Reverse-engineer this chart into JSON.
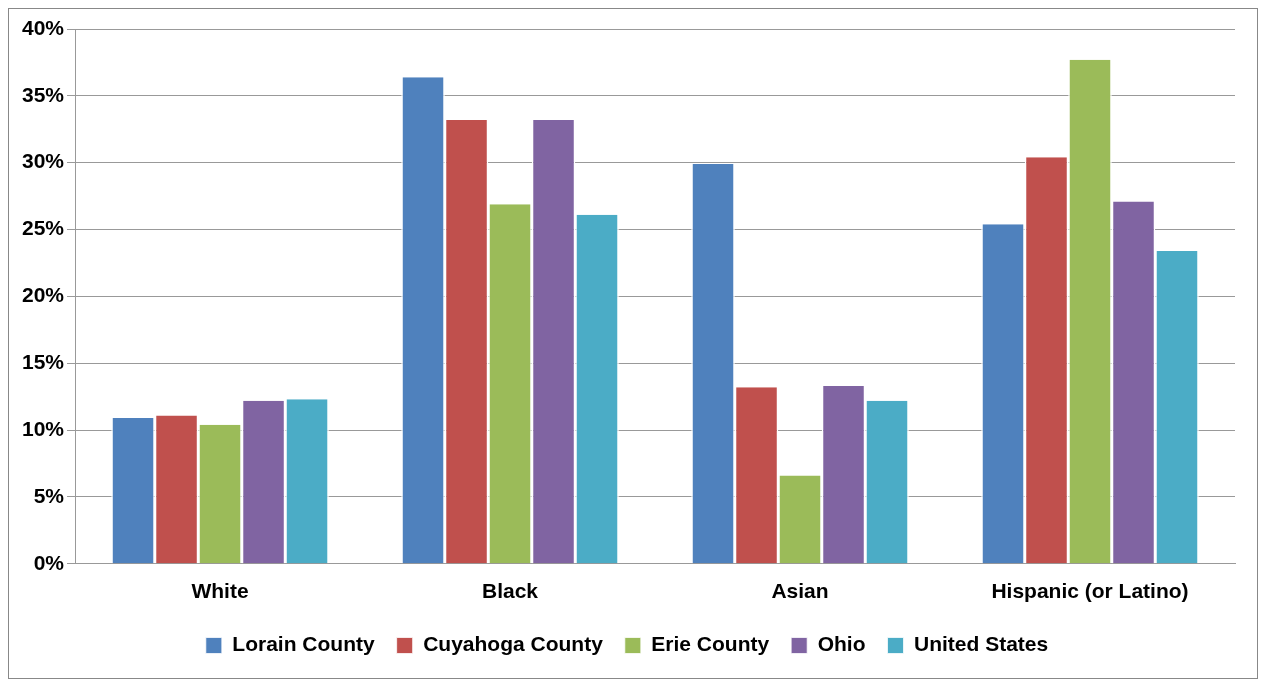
{
  "chart_data": {
    "type": "bar",
    "categories": [
      "White",
      "Black",
      "Asian",
      "Hispanic (or Latino)"
    ],
    "series": [
      {
        "name": "Lorain County",
        "color": "#4f81bd",
        "values": [
          10.9,
          36.4,
          29.9,
          25.4
        ]
      },
      {
        "name": "Cuyahoga County",
        "color": "#c0504d",
        "values": [
          11.1,
          33.2,
          13.2,
          30.4
        ]
      },
      {
        "name": "Erie County",
        "color": "#9bbb59",
        "values": [
          10.4,
          26.9,
          6.6,
          37.7
        ]
      },
      {
        "name": "Ohio",
        "color": "#8064a2",
        "values": [
          12.2,
          33.2,
          13.3,
          27.1
        ]
      },
      {
        "name": "United States",
        "color": "#4bacc6",
        "values": [
          12.3,
          26.1,
          12.2,
          23.4
        ]
      }
    ],
    "ylim": [
      0,
      40
    ],
    "yticks": [
      {
        "value": 0,
        "label": "0%"
      },
      {
        "value": 5,
        "label": "5%"
      },
      {
        "value": 10,
        "label": "10%"
      },
      {
        "value": 15,
        "label": "15%"
      },
      {
        "value": 20,
        "label": "20%"
      },
      {
        "value": 25,
        "label": "25%"
      },
      {
        "value": 30,
        "label": "30%"
      },
      {
        "value": 35,
        "label": "35%"
      },
      {
        "value": 40,
        "label": "40%"
      }
    ],
    "grid": "y",
    "legend": "bottom"
  }
}
